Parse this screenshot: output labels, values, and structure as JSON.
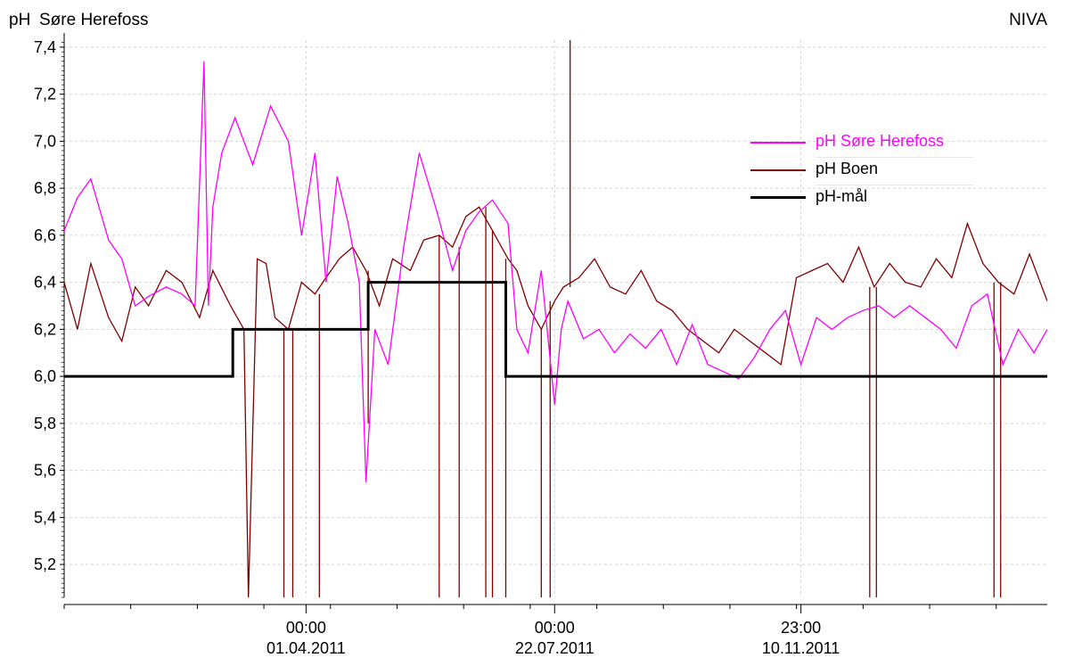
{
  "header": {
    "ylabel": "pH",
    "title": "Søre Herefoss",
    "source": "NIVA"
  },
  "colors": {
    "sore": "#ff00ff",
    "boen": "#800000",
    "maal": "#000000",
    "axis": "#000000",
    "grid": "#d4d4d4"
  },
  "chart_data": {
    "type": "line",
    "ylabel": "pH",
    "ylim": [
      5.06,
      7.43
    ],
    "yticks": [
      "5,2",
      "5,4",
      "5,6",
      "5,8",
      "6,0",
      "6,2",
      "6,4",
      "6,6",
      "6,8",
      "7,0",
      "7,2",
      "7,4"
    ],
    "ytick_values": [
      5.2,
      5.4,
      5.6,
      5.8,
      6.0,
      6.2,
      6.4,
      6.6,
      6.8,
      7.0,
      7.2,
      7.4
    ],
    "xlim": [
      "2010-12-13",
      "2012-02-29"
    ],
    "xtick_labels": [
      {
        "date": "2011-04-01",
        "time": "00:00",
        "label": "01.04.2011"
      },
      {
        "date": "2011-07-22",
        "time": "00:00",
        "label": "22.07.2011"
      },
      {
        "date": "2011-11-10",
        "time": "23:00",
        "label": "10.11.2011"
      }
    ],
    "grid": true,
    "legend_position": "top-right",
    "series": [
      {
        "name": "pH Søre Herefoss",
        "color": "#ff00ff",
        "x": [
          "2010-12-13",
          "2010-12-19",
          "2010-12-25",
          "2011-01-02",
          "2011-01-08",
          "2011-01-14",
          "2011-01-20",
          "2011-01-28",
          "2011-02-04",
          "2011-02-10",
          "2011-02-14",
          "2011-02-16",
          "2011-02-18",
          "2011-02-22",
          "2011-02-28",
          "2011-03-08",
          "2011-03-16",
          "2011-03-24",
          "2011-03-30",
          "2011-04-05",
          "2011-04-10",
          "2011-04-15",
          "2011-04-20",
          "2011-04-25",
          "2011-04-28",
          "2011-05-02",
          "2011-05-08",
          "2011-05-15",
          "2011-05-22",
          "2011-05-30",
          "2011-06-06",
          "2011-06-12",
          "2011-06-18",
          "2011-06-24",
          "2011-07-01",
          "2011-07-05",
          "2011-07-10",
          "2011-07-16",
          "2011-07-22",
          "2011-07-25",
          "2011-07-28",
          "2011-08-04",
          "2011-08-11",
          "2011-08-18",
          "2011-08-25",
          "2011-09-01",
          "2011-09-08",
          "2011-09-15",
          "2011-09-22",
          "2011-09-29",
          "2011-10-06",
          "2011-10-13",
          "2011-10-20",
          "2011-10-27",
          "2011-11-03",
          "2011-11-10",
          "2011-11-17",
          "2011-11-24",
          "2011-12-01",
          "2011-12-08",
          "2011-12-15",
          "2011-12-22",
          "2011-12-29",
          "2012-01-05",
          "2012-01-12",
          "2012-01-19",
          "2012-01-26",
          "2012-02-02",
          "2012-02-09",
          "2012-02-16",
          "2012-02-23",
          "2012-02-29"
        ],
        "y": [
          6.62,
          6.76,
          6.84,
          6.58,
          6.5,
          6.3,
          6.34,
          6.38,
          6.35,
          6.3,
          7.34,
          6.3,
          6.72,
          6.95,
          7.1,
          6.9,
          7.15,
          7.0,
          6.6,
          6.95,
          6.4,
          6.85,
          6.65,
          6.4,
          5.55,
          6.2,
          6.05,
          6.55,
          6.95,
          6.7,
          6.45,
          6.62,
          6.7,
          6.75,
          6.65,
          6.2,
          6.1,
          6.45,
          5.88,
          6.2,
          6.32,
          6.16,
          6.2,
          6.1,
          6.18,
          6.12,
          6.2,
          6.05,
          6.22,
          6.05,
          6.02,
          5.99,
          6.08,
          6.2,
          6.28,
          6.05,
          6.25,
          6.2,
          6.25,
          6.28,
          6.3,
          6.25,
          6.3,
          6.25,
          6.2,
          6.12,
          6.3,
          6.35,
          6.05,
          6.2,
          6.1,
          6.2
        ]
      },
      {
        "name": "pH Boen",
        "color": "#800000",
        "x": [
          "2010-12-13",
          "2010-12-19",
          "2010-12-25",
          "2011-01-02",
          "2011-01-08",
          "2011-01-14",
          "2011-01-20",
          "2011-01-28",
          "2011-02-04",
          "2011-02-12",
          "2011-02-18",
          "2011-02-26",
          "2011-03-04",
          "2011-03-06",
          "2011-03-10",
          "2011-03-14",
          "2011-03-18",
          "2011-03-24",
          "2011-03-30",
          "2011-04-05",
          "2011-04-10",
          "2011-04-16",
          "2011-04-22",
          "2011-04-28",
          "2011-05-04",
          "2011-05-10",
          "2011-05-18",
          "2011-05-24",
          "2011-05-31",
          "2011-06-06",
          "2011-06-12",
          "2011-06-18",
          "2011-06-24",
          "2011-07-01",
          "2011-07-05",
          "2011-07-10",
          "2011-07-16",
          "2011-07-22",
          "2011-07-26",
          "2011-08-02",
          "2011-08-09",
          "2011-08-16",
          "2011-08-23",
          "2011-08-30",
          "2011-09-06",
          "2011-09-13",
          "2011-09-20",
          "2011-09-27",
          "2011-10-04",
          "2011-10-11",
          "2011-10-18",
          "2011-10-25",
          "2011-11-01",
          "2011-11-08",
          "2011-11-15",
          "2011-11-22",
          "2011-11-29",
          "2011-12-06",
          "2011-12-13",
          "2011-12-20",
          "2011-12-27",
          "2012-01-03",
          "2012-01-10",
          "2012-01-17",
          "2012-01-24",
          "2012-01-31",
          "2012-02-07",
          "2012-02-14",
          "2012-02-21",
          "2012-02-29"
        ],
        "y": [
          6.4,
          6.2,
          6.48,
          6.25,
          6.15,
          6.38,
          6.3,
          6.45,
          6.4,
          6.25,
          6.45,
          6.3,
          6.2,
          5.06,
          6.5,
          6.48,
          6.25,
          6.2,
          6.4,
          6.35,
          6.42,
          6.5,
          6.55,
          6.45,
          6.3,
          6.5,
          6.45,
          6.58,
          6.6,
          6.55,
          6.68,
          6.72,
          6.62,
          6.5,
          6.45,
          6.3,
          6.2,
          6.32,
          6.38,
          6.42,
          6.5,
          6.38,
          6.35,
          6.45,
          6.32,
          6.28,
          6.2,
          6.15,
          6.1,
          6.2,
          6.15,
          6.1,
          6.05,
          6.42,
          6.45,
          6.48,
          6.4,
          6.55,
          6.38,
          6.48,
          6.4,
          6.38,
          6.5,
          6.42,
          6.65,
          6.48,
          6.4,
          6.35,
          6.52,
          6.32
        ],
        "spikes": [
          {
            "x": "2011-03-06",
            "to": 5.06
          },
          {
            "x": "2011-03-22",
            "to": 5.06
          },
          {
            "x": "2011-03-26",
            "to": 5.06
          },
          {
            "x": "2011-04-07",
            "to": 5.06
          },
          {
            "x": "2011-04-29",
            "to": 5.8
          },
          {
            "x": "2011-05-31",
            "to": 5.06
          },
          {
            "x": "2011-06-09",
            "to": 5.06
          },
          {
            "x": "2011-06-21",
            "to": 5.06
          },
          {
            "x": "2011-06-24",
            "to": 5.06
          },
          {
            "x": "2011-06-30",
            "to": 5.06
          },
          {
            "x": "2011-07-16",
            "to": 5.06
          },
          {
            "x": "2011-07-20",
            "to": 5.06
          },
          {
            "x": "2011-07-29",
            "to": 7.43
          },
          {
            "x": "2011-12-11",
            "to": 5.06
          },
          {
            "x": "2011-12-14",
            "to": 5.06
          },
          {
            "x": "2012-02-05",
            "to": 5.06
          },
          {
            "x": "2012-02-08",
            "to": 5.06
          }
        ]
      },
      {
        "name": "pH-mål",
        "color": "#000000",
        "x": [
          "2010-12-13",
          "2011-02-27",
          "2011-02-27",
          "2011-04-29",
          "2011-04-29",
          "2011-06-30",
          "2011-06-30",
          "2012-02-29"
        ],
        "y": [
          6.0,
          6.0,
          6.2,
          6.2,
          6.4,
          6.4,
          6.0,
          6.0
        ]
      }
    ]
  }
}
